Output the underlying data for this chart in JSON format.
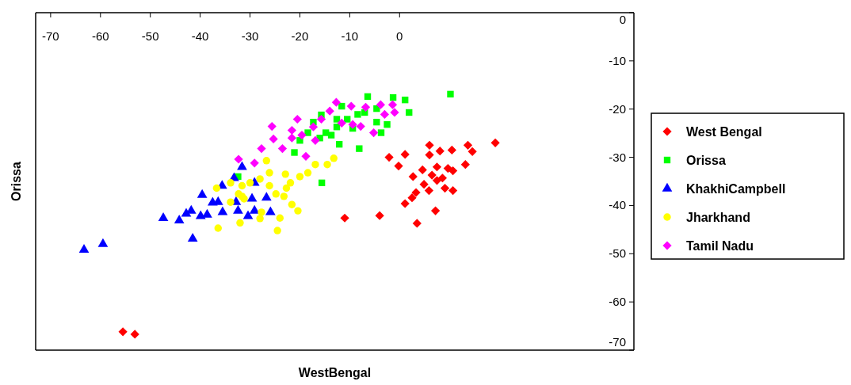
{
  "chart_data": {
    "type": "scatter",
    "xlabel": "WestBengal",
    "ylabel": "Orissa",
    "xlim": [
      -73,
      47
    ],
    "ylim": [
      -70,
      0
    ],
    "xticks": [
      -70,
      -60,
      -50,
      -40,
      -30,
      -20,
      -10,
      0
    ],
    "yticks": [
      0,
      -10,
      -20,
      -30,
      -40,
      -50,
      -60,
      -70
    ],
    "grid": false,
    "legend": "right",
    "series": [
      {
        "name": "West Bengal",
        "color": "#ff0000",
        "marker": "diamond",
        "x": [
          19.2,
          13.7,
          14.6,
          10.5,
          8.1,
          6.0,
          6.0,
          13.2,
          1.1,
          -2.1,
          -0.2,
          4.6,
          2.7,
          7.5,
          9.7,
          10.7,
          6.5,
          8.6,
          4.9,
          9.1,
          10.7,
          5.9,
          3.3,
          2.5,
          1.1,
          7.2,
          -4.0,
          -11.0,
          3.5,
          7.5,
          -55.5,
          -53.1
        ],
        "values": [
          -27.0,
          -27.5,
          -28.8,
          -28.5,
          -28.7,
          -27.5,
          -29.5,
          -31.5,
          -29.4,
          -30.0,
          -31.8,
          -32.6,
          -34.0,
          -32.0,
          -32.3,
          -32.8,
          -33.7,
          -34.3,
          -35.6,
          -36.4,
          -36.9,
          -36.9,
          -37.3,
          -38.4,
          -39.6,
          -41.1,
          -42.1,
          -42.6,
          -43.7,
          -34.8,
          -66.2,
          -66.7
        ]
      },
      {
        "name": "Orissa",
        "color": "#00ff00",
        "marker": "square",
        "x": [
          -6.4,
          -1.3,
          1.1,
          1.9,
          10.2,
          -2.5,
          -4.6,
          -3.7,
          -8.4,
          -10.5,
          -12.6,
          -14.8,
          -15.7,
          -16.0,
          -12.1,
          -8.1,
          -18.4,
          -20.0,
          -21.1,
          -15.6,
          -32.4,
          -7.0,
          -4.6,
          -13.7,
          -11.6,
          -17.3,
          -9.4,
          -12.6
        ],
        "values": [
          -17.4,
          -17.6,
          -18.1,
          -20.7,
          -16.9,
          -23.2,
          -22.7,
          -24.9,
          -21.1,
          -22.1,
          -23.7,
          -24.9,
          -21.2,
          -26.0,
          -27.3,
          -28.2,
          -24.9,
          -26.5,
          -29.0,
          -35.3,
          -34.0,
          -20.7,
          -19.9,
          -25.4,
          -19.4,
          -22.7,
          -24.0,
          -22.1
        ]
      },
      {
        "name": "KhakhiCampbell",
        "color": "#0000ff",
        "marker": "triangle",
        "x": [
          -63.3,
          -59.5,
          -41.5,
          -47.4,
          -44.2,
          -42.8,
          -41.8,
          -39.9,
          -38.6,
          -39.6,
          -37.5,
          -35.6,
          -35.5,
          -32.4,
          -30.4,
          -29.1,
          -25.9,
          -26.7,
          -29.1,
          -31.6,
          -33.2,
          -29.6,
          -32.8,
          -36.4
        ],
        "values": [
          -49.2,
          -48.0,
          -46.9,
          -42.6,
          -43.1,
          -41.7,
          -41.1,
          -42.2,
          -41.9,
          -37.8,
          -39.4,
          -35.9,
          -41.4,
          -41.1,
          -42.2,
          -41.1,
          -41.4,
          -38.4,
          -35.3,
          -32.0,
          -34.3,
          -38.6,
          -39.3,
          -39.3
        ]
      },
      {
        "name": "Jharkhand",
        "color": "#ffff00",
        "marker": "circle",
        "x": [
          -13.2,
          -14.5,
          -16.9,
          -18.4,
          -20.0,
          -21.9,
          -22.7,
          -23.2,
          -24.8,
          -21.6,
          -20.4,
          -24.0,
          -24.5,
          -26.7,
          -26.1,
          -22.9,
          -28.0,
          -30.0,
          -31.6,
          -32.3,
          -31.2,
          -33.9,
          -27.7,
          -32.0,
          -36.7,
          -33.9,
          -31.6,
          -36.4,
          -28.0,
          -26.1
        ],
        "values": [
          -30.2,
          -31.5,
          -31.5,
          -33.2,
          -34.0,
          -35.3,
          -36.4,
          -38.1,
          -37.6,
          -39.8,
          -41.1,
          -42.6,
          -45.2,
          -30.7,
          -33.2,
          -33.5,
          -34.5,
          -35.3,
          -35.9,
          -37.6,
          -38.6,
          -39.3,
          -41.4,
          -43.6,
          -36.4,
          -35.3,
          -38.1,
          -44.7,
          -42.7,
          -35.9
        ]
      },
      {
        "name": "Tamil Nadu",
        "color": "#ff00ff",
        "marker": "diamond",
        "x": [
          -12.7,
          -9.7,
          -6.8,
          -3.8,
          -1.4,
          -1.0,
          -3.0,
          -14.0,
          -15.7,
          -20.5,
          -25.6,
          -21.6,
          -17.3,
          -11.6,
          -9.4,
          -7.8,
          -5.2,
          -25.3,
          -23.5,
          -21.6,
          -19.6,
          -18.8,
          -27.7,
          -29.1,
          -32.3,
          -16.9
        ],
        "values": [
          -18.6,
          -19.4,
          -19.6,
          -19.1,
          -19.1,
          -20.7,
          -21.1,
          -20.4,
          -22.1,
          -22.1,
          -23.6,
          -24.4,
          -23.7,
          -22.9,
          -23.2,
          -23.6,
          -24.9,
          -26.2,
          -28.2,
          -26.0,
          -25.4,
          -29.8,
          -28.2,
          -31.2,
          -30.4,
          -26.5
        ]
      }
    ]
  }
}
